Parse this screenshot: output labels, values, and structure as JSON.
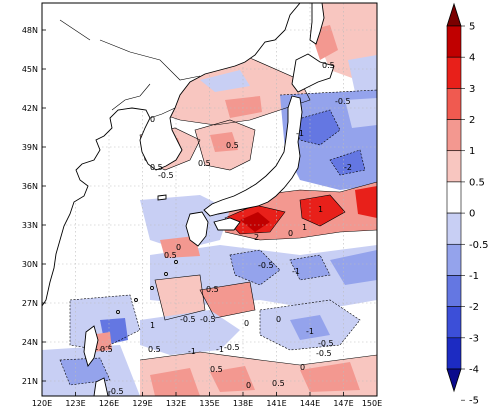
{
  "map": {
    "lat_ticks": [
      "48N",
      "45N",
      "42N",
      "39N",
      "36N",
      "33N",
      "30N",
      "27N",
      "24N",
      "21N"
    ],
    "lon_ticks": [
      "120E",
      "123E",
      "126E",
      "129E",
      "132E",
      "135E",
      "138E",
      "141E",
      "144E",
      "147E",
      "150E"
    ],
    "contour_labels": [
      "0.5",
      "0",
      "-0.5",
      "-1",
      "-2",
      "2",
      "1",
      "0",
      "0.5",
      "-1",
      "-0.5",
      "0",
      "0.5",
      "-0.5",
      "0.5",
      "0",
      "-1",
      "-0.5",
      "-1",
      "-0.5",
      "-0.5",
      "0",
      "0.5",
      "0.5",
      "1",
      "0.5",
      "0",
      "-0.5",
      "0.5",
      "-0.5",
      "-1",
      "0.5",
      "0",
      "1",
      "0.5",
      "-0.5"
    ]
  },
  "colorbar": {
    "labels": [
      "5",
      "4",
      "3",
      "2",
      "1",
      "0.5",
      "0",
      "-0.5",
      "-1",
      "-2",
      "-3",
      "-4",
      "-5"
    ],
    "colors": [
      "#7a0000",
      "#c00000",
      "#e8201a",
      "#f05a50",
      "#f39890",
      "#f8c6c0",
      "#ffffff",
      "#c8cff4",
      "#94a3ec",
      "#6477e2",
      "#3c4fd8",
      "#1c2bc2",
      "#0a0a8c"
    ]
  }
}
